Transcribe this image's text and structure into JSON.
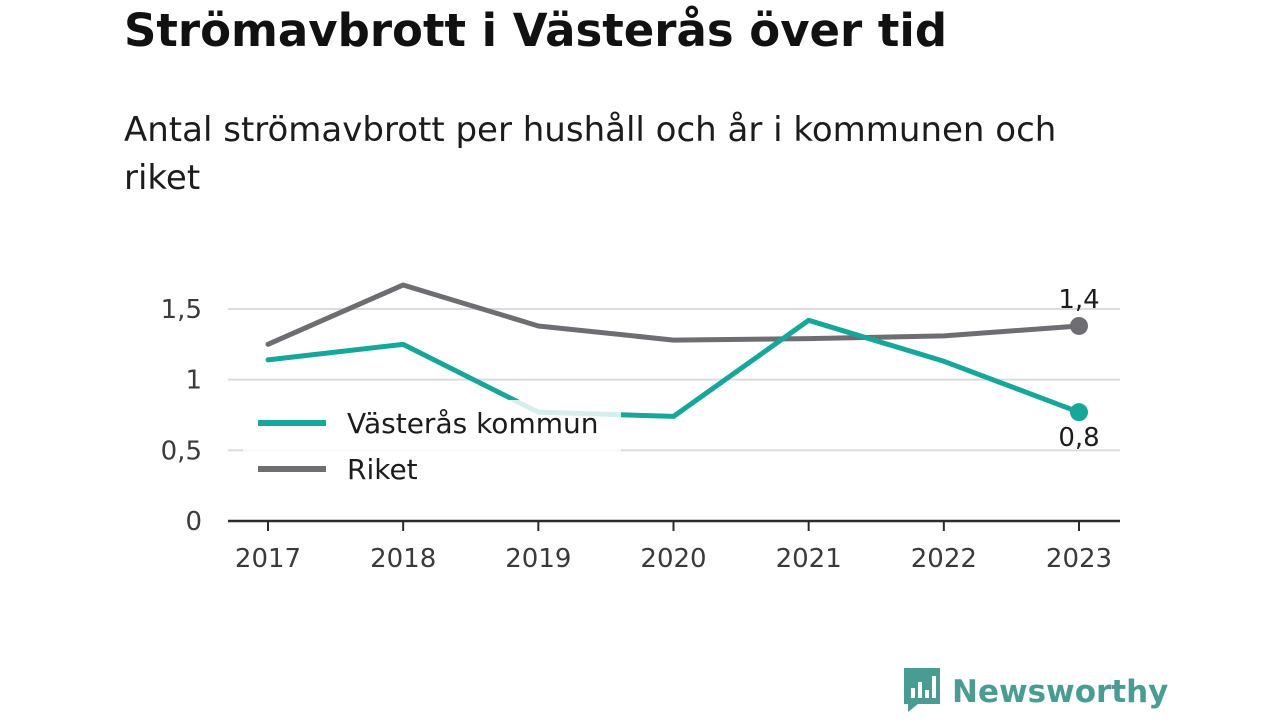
{
  "title": "Strömavbrott i Västerås över tid",
  "subtitle": "Antal strömavbrott per hushåll och år i kommunen och riket",
  "brand": {
    "name": "Newsworthy",
    "logo_icon": "bar-chart-speech-bubble-icon",
    "color": "#4a9c93"
  },
  "chart_data": {
    "type": "line",
    "x": [
      "2017",
      "2018",
      "2019",
      "2020",
      "2021",
      "2022",
      "2023"
    ],
    "ylim": [
      0,
      1.5
    ],
    "yticks": [
      {
        "value": 0,
        "label": "0"
      },
      {
        "value": 0.5,
        "label": "0,5"
      },
      {
        "value": 1,
        "label": "1"
      },
      {
        "value": 1.5,
        "label": "1,5"
      }
    ],
    "grid": true,
    "legend_position": "bottom-left",
    "series": [
      {
        "name": "Västerås kommun",
        "color": "#16a69a",
        "values": [
          1.14,
          1.25,
          0.77,
          0.74,
          1.42,
          1.13,
          0.77
        ],
        "end_label": "0,8"
      },
      {
        "name": "Riket",
        "color": "#6e6d72",
        "values": [
          1.25,
          1.67,
          1.38,
          1.28,
          1.29,
          1.31,
          1.38
        ],
        "end_label": "1,4"
      }
    ]
  }
}
